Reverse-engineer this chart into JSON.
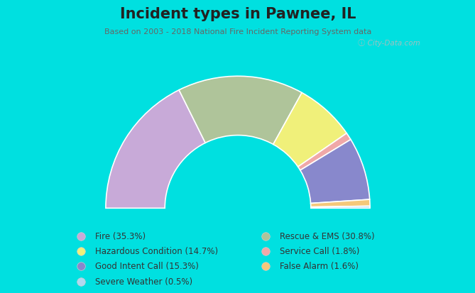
{
  "title": "Incident types in Pawnee, IL",
  "subtitle": "Based on 2003 - 2018 National Fire Incident Reporting System data",
  "background_color": "#00e0e0",
  "chart_bg_color": "#f0f5ec",
  "watermark": "ⓘ City-Data.com",
  "segments": [
    {
      "label": "Fire (35.3%)",
      "value": 35.3,
      "color": "#c8aad8"
    },
    {
      "label": "Rescue & EMS (30.8%)",
      "value": 30.8,
      "color": "#afc49a"
    },
    {
      "label": "Hazardous Condition (14.7%)",
      "value": 14.7,
      "color": "#f0f07a"
    },
    {
      "label": "Service Call (1.8%)",
      "value": 1.8,
      "color": "#f0a8a8"
    },
    {
      "label": "Good Intent Call (15.3%)",
      "value": 15.3,
      "color": "#8888cc"
    },
    {
      "label": "False Alarm (1.6%)",
      "value": 1.6,
      "color": "#f5c87a"
    },
    {
      "label": "Severe Weather (0.5%)",
      "value": 0.5,
      "color": "#b0d8f0"
    }
  ],
  "legend_left": [
    [
      "Fire (35.3%)",
      "#c8aad8"
    ],
    [
      "Hazardous Condition (14.7%)",
      "#f0f07a"
    ],
    [
      "Good Intent Call (15.3%)",
      "#8888cc"
    ],
    [
      "Severe Weather (0.5%)",
      "#b0d8f0"
    ]
  ],
  "legend_right": [
    [
      "Rescue & EMS (30.8%)",
      "#afc49a"
    ],
    [
      "Service Call (1.8%)",
      "#f0a8a8"
    ],
    [
      "False Alarm (1.6%)",
      "#f5c87a"
    ]
  ],
  "title_fontsize": 15,
  "subtitle_fontsize": 8,
  "legend_fontsize": 8.5
}
